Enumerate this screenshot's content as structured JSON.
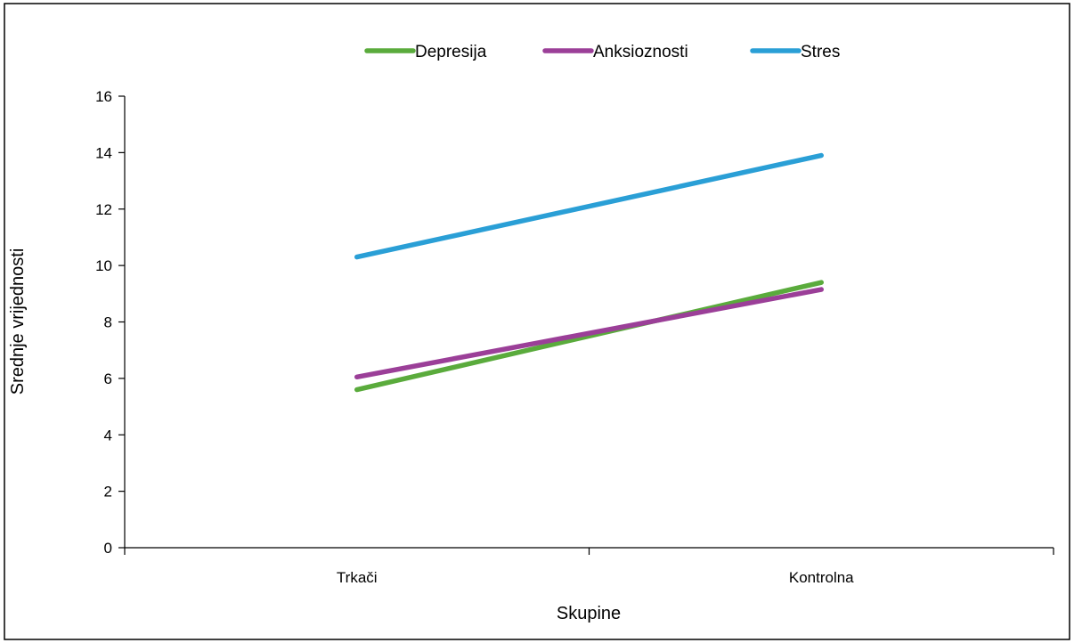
{
  "chart_data": {
    "type": "line",
    "title": "",
    "xlabel": "Skupine",
    "ylabel": "Srednje vrijednosti",
    "categories": [
      "Trkači",
      "Kontrolna"
    ],
    "ylim": [
      0,
      16
    ],
    "yticks": [
      0,
      2,
      4,
      6,
      8,
      10,
      12,
      14,
      16
    ],
    "grid": false,
    "legend_position": "top",
    "series": [
      {
        "name": "Depresija",
        "values": [
          5.6,
          9.4
        ],
        "color": "#5aab3c"
      },
      {
        "name": "Anksioznosti",
        "values": [
          6.05,
          9.15
        ],
        "color": "#9b3f98"
      },
      {
        "name": "Stres",
        "values": [
          10.3,
          13.9
        ],
        "color": "#2a9fd6"
      }
    ]
  }
}
